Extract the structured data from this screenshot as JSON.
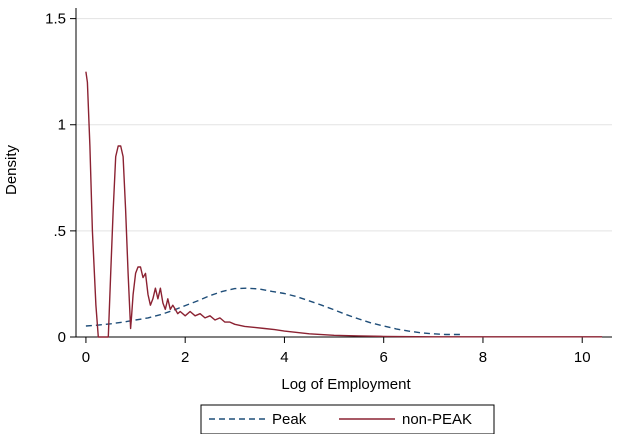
{
  "chart_data": {
    "type": "line",
    "title": "",
    "xlabel": "Log of Employment",
    "ylabel": "Density",
    "xlim": [
      -0.2,
      10.6
    ],
    "ylim": [
      0,
      1.55
    ],
    "x_ticks": [
      0,
      2,
      4,
      6,
      8,
      10
    ],
    "x_tick_labels": [
      "0",
      "2",
      "4",
      "6",
      "8",
      "10"
    ],
    "y_ticks": [
      0,
      0.5,
      1,
      1.5
    ],
    "y_tick_labels": [
      "0",
      ".5",
      "1",
      "1.5"
    ],
    "grid": true,
    "legend_position": "bottom",
    "series": [
      {
        "name": "Peak",
        "color": "#1f4e79",
        "style": "dashed",
        "x": [
          0,
          0.25,
          0.5,
          0.75,
          1.0,
          1.25,
          1.5,
          1.75,
          2.0,
          2.25,
          2.5,
          2.75,
          3.0,
          3.25,
          3.5,
          3.75,
          4.0,
          4.25,
          4.5,
          4.75,
          5.0,
          5.25,
          5.5,
          5.75,
          6.0,
          6.25,
          6.5,
          6.75,
          7.0,
          7.25,
          7.6
        ],
        "y": [
          0.052,
          0.056,
          0.062,
          0.07,
          0.08,
          0.09,
          0.105,
          0.125,
          0.148,
          0.17,
          0.195,
          0.215,
          0.228,
          0.23,
          0.226,
          0.215,
          0.205,
          0.19,
          0.17,
          0.15,
          0.128,
          0.105,
          0.085,
          0.066,
          0.052,
          0.038,
          0.028,
          0.02,
          0.015,
          0.012,
          0.012
        ]
      },
      {
        "name": "non-PEAK",
        "color": "#8b2232",
        "style": "solid",
        "x": [
          0.0,
          0.03,
          0.08,
          0.13,
          0.2,
          0.25,
          0.35,
          0.45,
          0.5,
          0.55,
          0.6,
          0.65,
          0.7,
          0.75,
          0.8,
          0.85,
          0.9,
          0.92,
          0.95,
          1.0,
          1.05,
          1.1,
          1.15,
          1.2,
          1.25,
          1.3,
          1.35,
          1.4,
          1.45,
          1.5,
          1.55,
          1.6,
          1.65,
          1.7,
          1.75,
          1.8,
          1.85,
          1.9,
          2.0,
          2.1,
          2.2,
          2.3,
          2.4,
          2.5,
          2.6,
          2.7,
          2.8,
          2.9,
          3.0,
          3.2,
          3.4,
          3.6,
          3.8,
          4.0,
          4.5,
          5.0,
          5.5,
          6.0,
          7.0,
          8.0,
          9.0,
          10.4
        ],
        "y": [
          1.25,
          1.2,
          0.9,
          0.5,
          0.15,
          0.0,
          0.0,
          0.0,
          0.3,
          0.6,
          0.85,
          0.9,
          0.9,
          0.85,
          0.6,
          0.3,
          0.04,
          0.1,
          0.2,
          0.3,
          0.33,
          0.33,
          0.28,
          0.3,
          0.2,
          0.15,
          0.18,
          0.23,
          0.18,
          0.23,
          0.16,
          0.13,
          0.18,
          0.13,
          0.15,
          0.13,
          0.11,
          0.12,
          0.1,
          0.12,
          0.1,
          0.11,
          0.09,
          0.1,
          0.08,
          0.09,
          0.07,
          0.07,
          0.06,
          0.05,
          0.045,
          0.04,
          0.035,
          0.028,
          0.015,
          0.008,
          0.005,
          0.003,
          0.001,
          0.001,
          0.001,
          0.001
        ]
      }
    ]
  }
}
